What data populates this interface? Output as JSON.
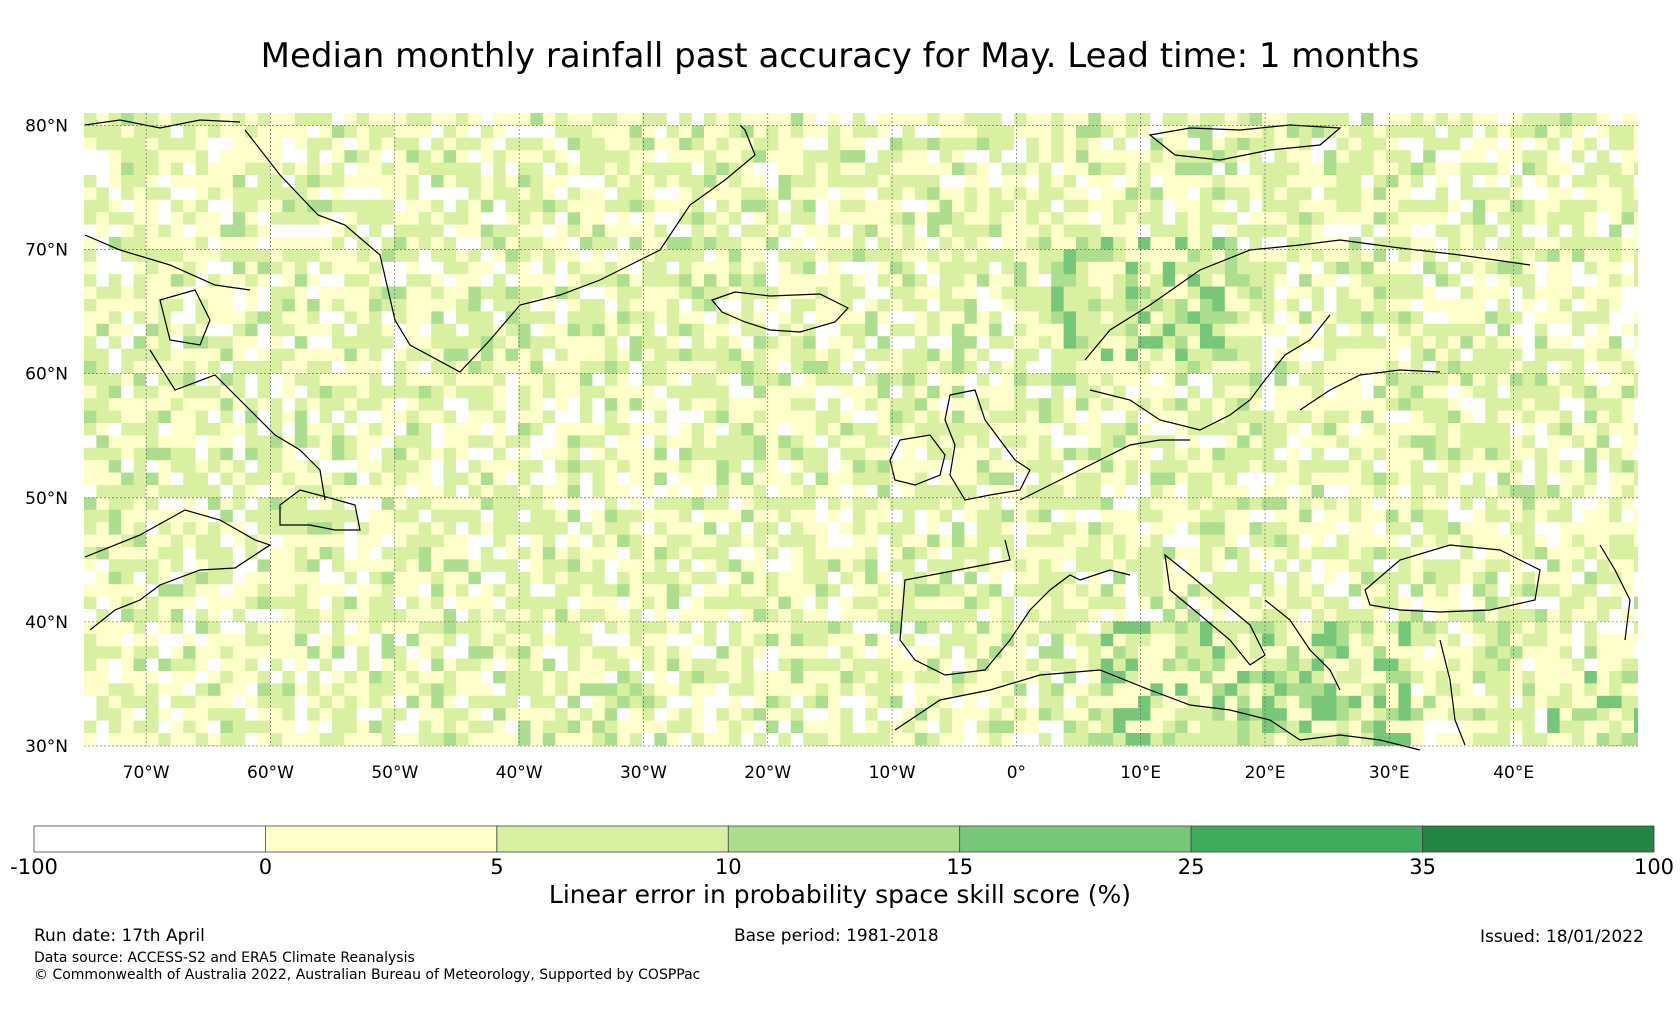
{
  "title": "Median monthly rainfall past accuracy for May. Lead time: 1 months",
  "map": {
    "lon_range": [
      -75,
      50
    ],
    "lat_range": [
      30,
      81
    ],
    "lat_ticks": [
      "80°N",
      "70°N",
      "60°N",
      "50°N",
      "40°N",
      "30°N"
    ],
    "lon_ticks": [
      "70°W",
      "60°W",
      "50°W",
      "40°W",
      "30°W",
      "20°W",
      "10°W",
      "0°",
      "10°E",
      "20°E",
      "30°E",
      "40°E"
    ]
  },
  "colorbar": {
    "boundaries": [
      "-100",
      "0",
      "5",
      "10",
      "15",
      "25",
      "35",
      "100"
    ],
    "colors": [
      "#ffffff",
      "#ffffcc",
      "#d9f0a3",
      "#addd8e",
      "#78c679",
      "#41ab5d",
      "#238443"
    ],
    "label": "Linear error in probability space skill score (%)"
  },
  "footer": {
    "run_date": "Run date: 17th April",
    "base_period": "Base period: 1981-2018",
    "issued": "Issued: 18/01/2022",
    "data_source": "Data source: ACCESS-S2 and ERA5 Climate Reanalysis",
    "copyright": "© Commonwealth of Australia 2022, Australian Bureau of Meteorology, Supported by COSPPac"
  }
}
